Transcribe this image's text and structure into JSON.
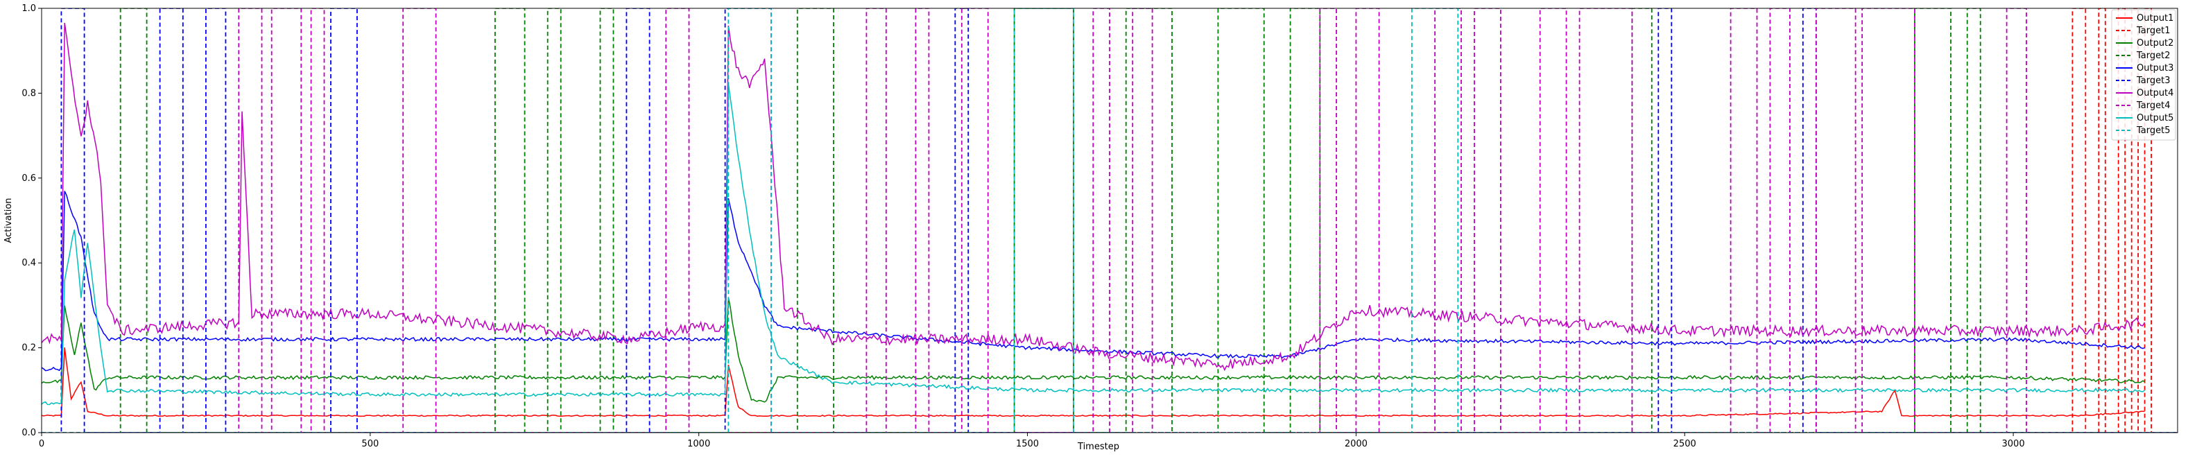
{
  "chart_data": {
    "type": "line",
    "title": "",
    "xlabel": "Timestep",
    "ylabel": "Activation",
    "xlim": [
      0,
      3250
    ],
    "ylim": [
      0.0,
      1.0
    ],
    "xticks": [
      0,
      500,
      1000,
      1500,
      2000,
      2500,
      3000
    ],
    "yticks": [
      0.0,
      0.2,
      0.4,
      0.6,
      0.8,
      1.0
    ],
    "grid": false,
    "legend_position": "top-right",
    "series": [
      {
        "name": "Output1",
        "color": "#ff0000",
        "style": "solid",
        "points": [
          [
            0,
            0.04
          ],
          [
            30,
            0.04
          ],
          [
            35,
            0.2
          ],
          [
            45,
            0.08
          ],
          [
            60,
            0.12
          ],
          [
            70,
            0.05
          ],
          [
            100,
            0.04
          ],
          [
            500,
            0.04
          ],
          [
            1040,
            0.04
          ],
          [
            1045,
            0.16
          ],
          [
            1060,
            0.06
          ],
          [
            1080,
            0.04
          ],
          [
            1500,
            0.04
          ],
          [
            2000,
            0.04
          ],
          [
            2500,
            0.04
          ],
          [
            2800,
            0.05
          ],
          [
            2820,
            0.1
          ],
          [
            2830,
            0.04
          ],
          [
            3000,
            0.04
          ],
          [
            3100,
            0.04
          ],
          [
            3200,
            0.05
          ]
        ]
      },
      {
        "name": "Target1",
        "color": "#ff0000",
        "style": "dashed",
        "segments": [
          [
            3090,
            3110
          ],
          [
            3130,
            3140
          ],
          [
            3160,
            3170
          ],
          [
            3180,
            3190
          ],
          [
            3200,
            3210
          ]
        ]
      },
      {
        "name": "Output2",
        "color": "#008000",
        "style": "solid",
        "points": [
          [
            0,
            0.12
          ],
          [
            30,
            0.12
          ],
          [
            35,
            0.3
          ],
          [
            50,
            0.18
          ],
          [
            60,
            0.26
          ],
          [
            80,
            0.1
          ],
          [
            100,
            0.13
          ],
          [
            500,
            0.13
          ],
          [
            1040,
            0.13
          ],
          [
            1045,
            0.32
          ],
          [
            1060,
            0.18
          ],
          [
            1080,
            0.08
          ],
          [
            1100,
            0.07
          ],
          [
            1120,
            0.13
          ],
          [
            1500,
            0.13
          ],
          [
            2000,
            0.13
          ],
          [
            2500,
            0.13
          ],
          [
            3000,
            0.13
          ],
          [
            3200,
            0.12
          ]
        ]
      },
      {
        "name": "Target2",
        "color": "#008000",
        "style": "dashed",
        "segments": [
          [
            120,
            160
          ],
          [
            690,
            735
          ],
          [
            770,
            790
          ],
          [
            850,
            870
          ],
          [
            1150,
            1205
          ],
          [
            1480,
            1570
          ],
          [
            1650,
            1720
          ],
          [
            1790,
            1860
          ],
          [
            1900,
            1945
          ],
          [
            2420,
            2450
          ],
          [
            2850,
            2905
          ],
          [
            2930,
            2950
          ]
        ]
      },
      {
        "name": "Output3",
        "color": "#0000ff",
        "style": "solid",
        "points": [
          [
            0,
            0.15
          ],
          [
            30,
            0.15
          ],
          [
            35,
            0.57
          ],
          [
            60,
            0.46
          ],
          [
            80,
            0.28
          ],
          [
            100,
            0.22
          ],
          [
            500,
            0.22
          ],
          [
            1000,
            0.22
          ],
          [
            1040,
            0.22
          ],
          [
            1045,
            0.55
          ],
          [
            1060,
            0.45
          ],
          [
            1080,
            0.38
          ],
          [
            1100,
            0.3
          ],
          [
            1120,
            0.25
          ],
          [
            1500,
            0.2
          ],
          [
            1800,
            0.18
          ],
          [
            1900,
            0.18
          ],
          [
            2000,
            0.22
          ],
          [
            2500,
            0.21
          ],
          [
            3000,
            0.22
          ],
          [
            3200,
            0.2
          ]
        ]
      },
      {
        "name": "Target3",
        "color": "#0000ff",
        "style": "dashed",
        "segments": [
          [
            30,
            65
          ],
          [
            180,
            215
          ],
          [
            250,
            280
          ],
          [
            440,
            480
          ],
          [
            890,
            925
          ],
          [
            1040,
            1110
          ],
          [
            1390,
            1410
          ],
          [
            2460,
            2480
          ],
          [
            2680,
            2700
          ]
        ]
      },
      {
        "name": "Output4",
        "color": "#bf00bf",
        "style": "solid",
        "points": [
          [
            0,
            0.22
          ],
          [
            30,
            0.22
          ],
          [
            35,
            0.96
          ],
          [
            45,
            0.84
          ],
          [
            60,
            0.7
          ],
          [
            70,
            0.78
          ],
          [
            90,
            0.6
          ],
          [
            100,
            0.3
          ],
          [
            120,
            0.24
          ],
          [
            300,
            0.26
          ],
          [
            305,
            0.75
          ],
          [
            320,
            0.28
          ],
          [
            500,
            0.28
          ],
          [
            900,
            0.22
          ],
          [
            1000,
            0.25
          ],
          [
            1040,
            0.25
          ],
          [
            1045,
            0.95
          ],
          [
            1060,
            0.85
          ],
          [
            1080,
            0.82
          ],
          [
            1100,
            0.88
          ],
          [
            1110,
            0.7
          ],
          [
            1130,
            0.3
          ],
          [
            1200,
            0.22
          ],
          [
            1500,
            0.22
          ],
          [
            1600,
            0.19
          ],
          [
            1800,
            0.16
          ],
          [
            1900,
            0.18
          ],
          [
            2000,
            0.29
          ],
          [
            2500,
            0.24
          ],
          [
            3000,
            0.24
          ],
          [
            3100,
            0.24
          ],
          [
            3200,
            0.26
          ]
        ]
      },
      {
        "name": "Target4",
        "color": "#bf00bf",
        "style": "dashed",
        "segments": [
          [
            300,
            335
          ],
          [
            350,
            395
          ],
          [
            410,
            430
          ],
          [
            550,
            600
          ],
          [
            950,
            985
          ],
          [
            1255,
            1285
          ],
          [
            1330,
            1350
          ],
          [
            1400,
            1440
          ],
          [
            1600,
            1625
          ],
          [
            1660,
            1690
          ],
          [
            1945,
            1970
          ],
          [
            2000,
            2035
          ],
          [
            2120,
            2160
          ],
          [
            2180,
            2220
          ],
          [
            2280,
            2320
          ],
          [
            2340,
            2420
          ],
          [
            2570,
            2610
          ],
          [
            2630,
            2660
          ],
          [
            2700,
            2760
          ],
          [
            2770,
            2850
          ],
          [
            2990,
            3020
          ]
        ]
      },
      {
        "name": "Output5",
        "color": "#00bfbf",
        "style": "solid",
        "points": [
          [
            0,
            0.07
          ],
          [
            30,
            0.07
          ],
          [
            35,
            0.36
          ],
          [
            50,
            0.48
          ],
          [
            60,
            0.32
          ],
          [
            70,
            0.45
          ],
          [
            90,
            0.2
          ],
          [
            100,
            0.1
          ],
          [
            500,
            0.09
          ],
          [
            1000,
            0.09
          ],
          [
            1040,
            0.09
          ],
          [
            1045,
            0.82
          ],
          [
            1060,
            0.65
          ],
          [
            1080,
            0.45
          ],
          [
            1100,
            0.28
          ],
          [
            1120,
            0.18
          ],
          [
            1200,
            0.12
          ],
          [
            1500,
            0.1
          ],
          [
            2000,
            0.1
          ],
          [
            2500,
            0.1
          ],
          [
            3000,
            0.1
          ],
          [
            3200,
            0.1
          ]
        ]
      },
      {
        "name": "Target5",
        "color": "#00bfbf",
        "style": "dashed",
        "segments": [
          [
            1045,
            1110
          ],
          [
            2085,
            2155
          ],
          [
            1480,
            1570
          ]
        ]
      }
    ]
  }
}
